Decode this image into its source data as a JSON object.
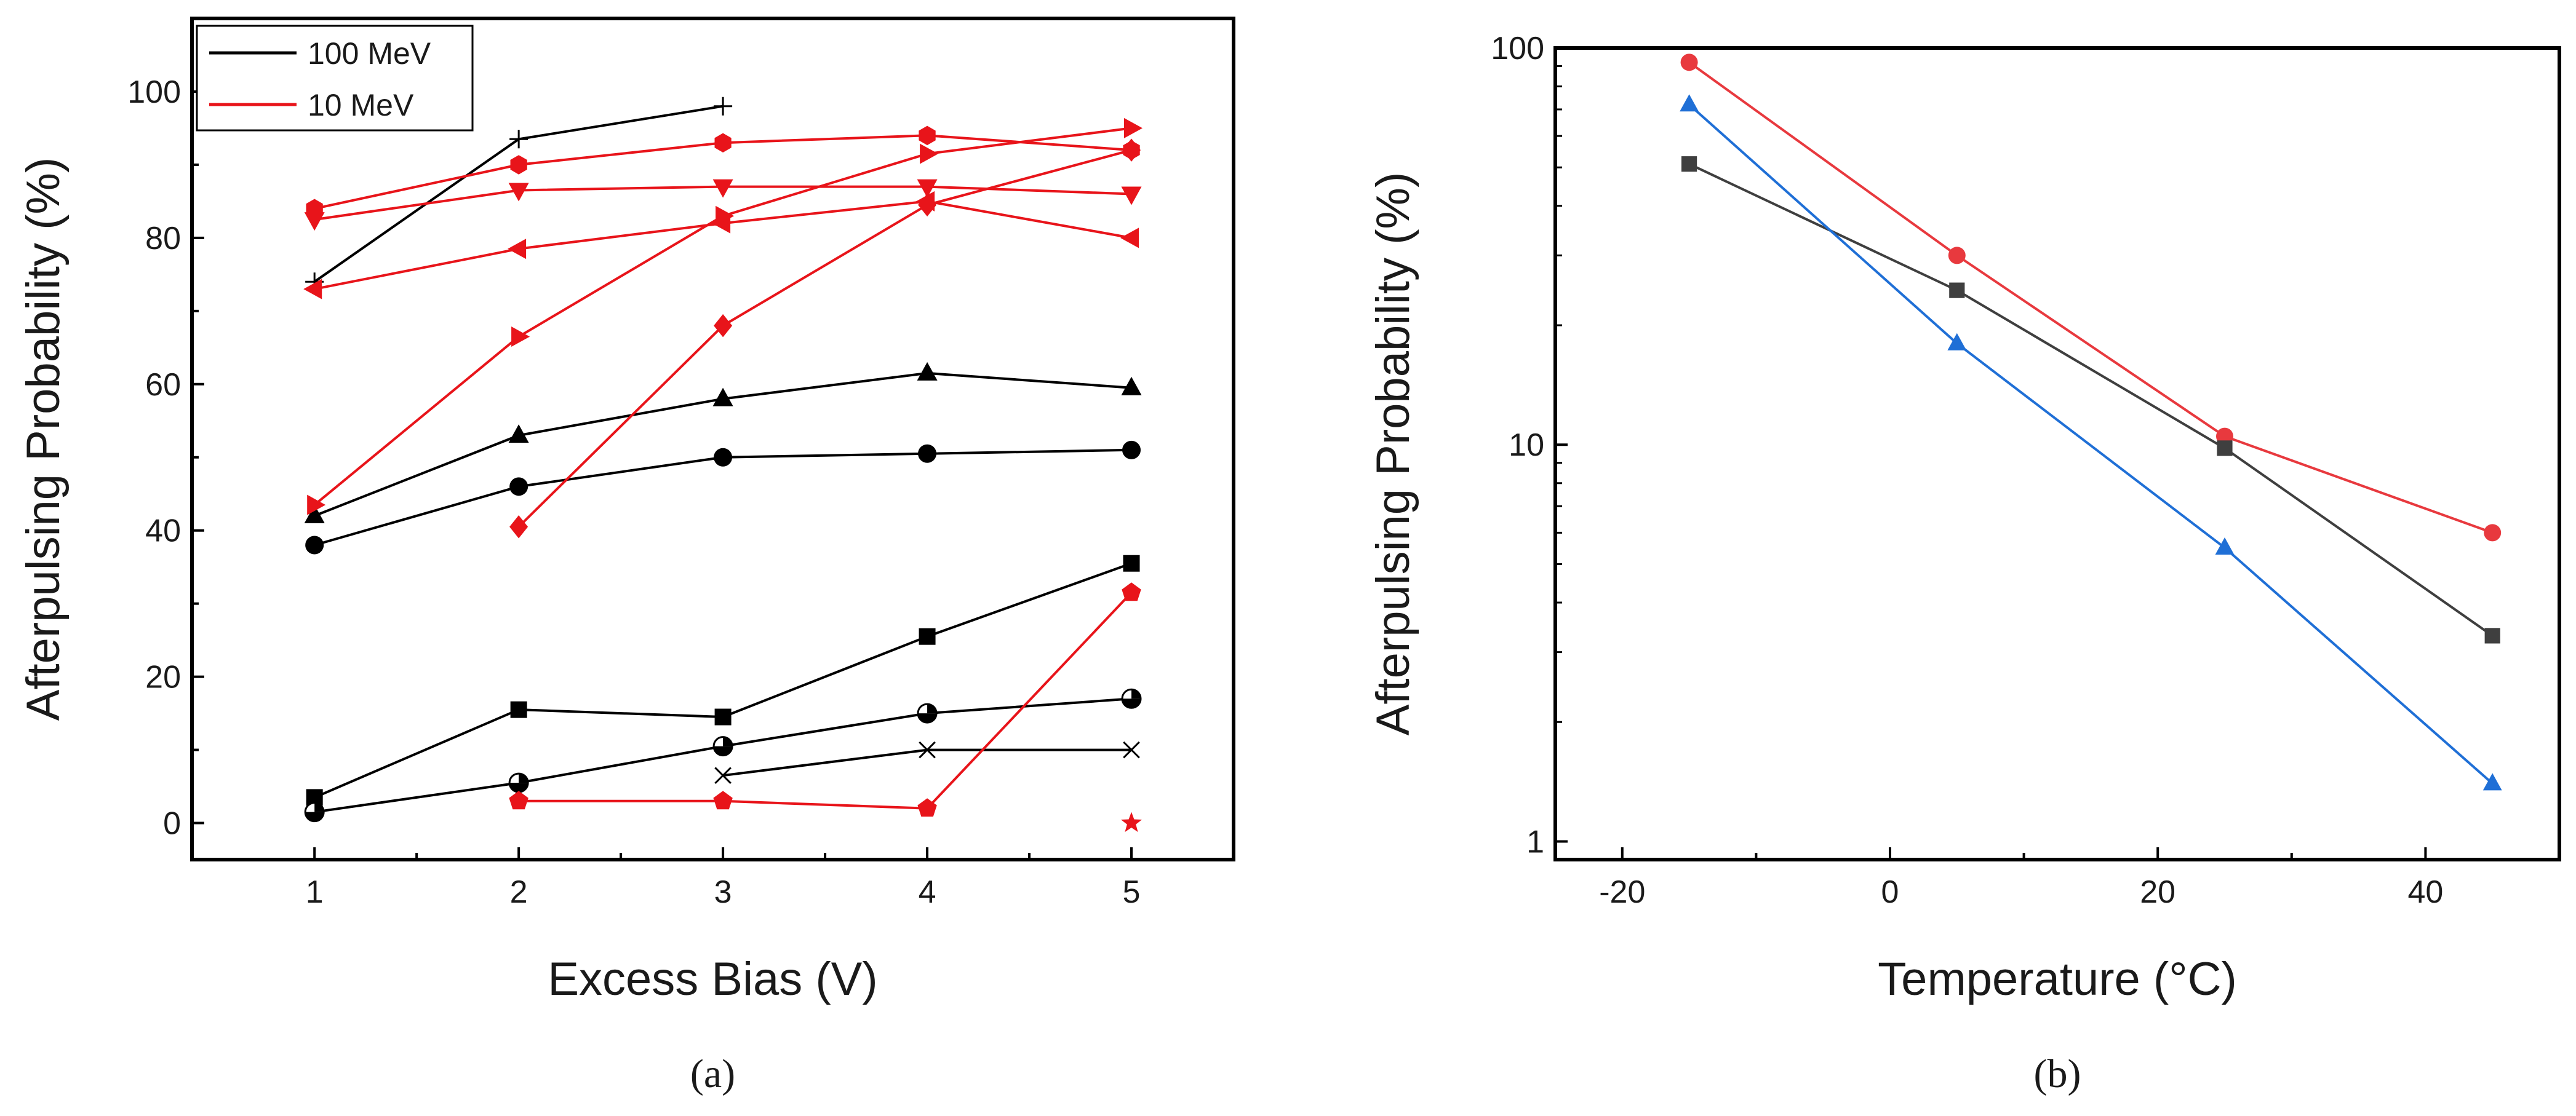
{
  "chart_data": [
    {
      "panel_label": "(a)",
      "type": "line",
      "xlabel": "Excess Bias (V)",
      "ylabel": "Afterpulsing Probability (%)",
      "xlim": [
        0.4,
        5.5
      ],
      "ylim": [
        -5,
        110
      ],
      "xticks": [
        1,
        2,
        3,
        4,
        5
      ],
      "yticks": [
        0,
        20,
        40,
        60,
        80,
        100
      ],
      "grid": false,
      "legend": {
        "position": "top-left",
        "entries": [
          {
            "label": "100 MeV",
            "color": "#000000"
          },
          {
            "label": "10 MeV",
            "color": "#e8141a"
          }
        ]
      },
      "series": [
        {
          "name": "100 MeV plus",
          "group": "100 MeV",
          "color": "#000000",
          "marker": "plus",
          "x": [
            1,
            2,
            3
          ],
          "y": [
            74,
            93.5,
            98
          ]
        },
        {
          "name": "100 MeV triangle",
          "group": "100 MeV",
          "color": "#000000",
          "marker": "triangle-up",
          "x": [
            1,
            2,
            3,
            4,
            5
          ],
          "y": [
            42,
            53,
            58,
            61.5,
            59.5
          ]
        },
        {
          "name": "100 MeV circle",
          "group": "100 MeV",
          "color": "#000000",
          "marker": "circle",
          "x": [
            1,
            2,
            3,
            4,
            5
          ],
          "y": [
            38,
            46,
            50,
            50.5,
            51
          ]
        },
        {
          "name": "100 MeV square",
          "group": "100 MeV",
          "color": "#000000",
          "marker": "square",
          "x": [
            1,
            2,
            3,
            4,
            5
          ],
          "y": [
            3.5,
            15.5,
            14.5,
            25.5,
            35.5
          ]
        },
        {
          "name": "100 MeV half circle",
          "group": "100 MeV",
          "color": "#000000",
          "marker": "half-circle",
          "x": [
            1,
            2,
            3,
            4,
            5
          ],
          "y": [
            1.5,
            5.5,
            10.5,
            15,
            17
          ]
        },
        {
          "name": "100 MeV cross",
          "group": "100 MeV",
          "color": "#000000",
          "marker": "x",
          "x": [
            3,
            4,
            5
          ],
          "y": [
            6.5,
            10,
            10
          ]
        },
        {
          "name": "10 MeV hexagon",
          "group": "10 MeV",
          "color": "#e8141a",
          "marker": "hexagon",
          "x": [
            1,
            2,
            3,
            4,
            5
          ],
          "y": [
            84,
            90,
            93,
            94,
            92
          ]
        },
        {
          "name": "10 MeV triangle down",
          "group": "10 MeV",
          "color": "#e8141a",
          "marker": "triangle-down",
          "x": [
            1,
            2,
            3,
            4,
            5
          ],
          "y": [
            82.5,
            86.5,
            87,
            87,
            86
          ]
        },
        {
          "name": "10 MeV triangle left",
          "group": "10 MeV",
          "color": "#e8141a",
          "marker": "triangle-left",
          "x": [
            1,
            2,
            3,
            4,
            5
          ],
          "y": [
            73,
            78.5,
            82,
            85,
            80
          ]
        },
        {
          "name": "10 MeV triangle right",
          "group": "10 MeV",
          "color": "#e8141a",
          "marker": "triangle-right",
          "x": [
            1,
            2,
            3,
            4,
            5
          ],
          "y": [
            43.5,
            66.5,
            83,
            91.5,
            95
          ]
        },
        {
          "name": "10 MeV diamond",
          "group": "10 MeV",
          "color": "#e8141a",
          "marker": "diamond",
          "x": [
            2,
            3,
            4,
            5
          ],
          "y": [
            40.5,
            68,
            84.5,
            92
          ]
        },
        {
          "name": "10 MeV pentagon",
          "group": "10 MeV",
          "color": "#e8141a",
          "marker": "pentagon",
          "x": [
            2,
            3,
            4,
            5
          ],
          "y": [
            3,
            3,
            2,
            31.5
          ]
        },
        {
          "name": "10 MeV star",
          "group": "10 MeV",
          "color": "#e8141a",
          "marker": "star",
          "x": [
            5
          ],
          "y": [
            0
          ]
        }
      ]
    },
    {
      "panel_label": "(b)",
      "type": "line",
      "yscale": "log",
      "xlabel": "Temperature (°C)",
      "ylabel": "Afterpulsing Probability (%)",
      "xlim": [
        -25,
        50
      ],
      "ylim": [
        0.9,
        100
      ],
      "xticks": [
        "-20",
        "0",
        "20",
        "40"
      ],
      "yticks": [
        "1",
        "10",
        "100"
      ],
      "grid": false,
      "series": [
        {
          "name": "red circles",
          "color": "#e8393e",
          "marker": "circle",
          "x": [
            -15,
            5,
            25,
            45
          ],
          "y": [
            92,
            30,
            10.5,
            6
          ]
        },
        {
          "name": "gray squares",
          "color": "#3f3f3f",
          "marker": "square",
          "x": [
            -15,
            5,
            25,
            45
          ],
          "y": [
            51,
            24.5,
            9.8,
            3.3
          ]
        },
        {
          "name": "blue triangles",
          "color": "#1f6fd6",
          "marker": "triangle-up",
          "x": [
            -15,
            5,
            25,
            45
          ],
          "y": [
            72,
            18,
            5.5,
            1.4
          ]
        }
      ]
    }
  ]
}
